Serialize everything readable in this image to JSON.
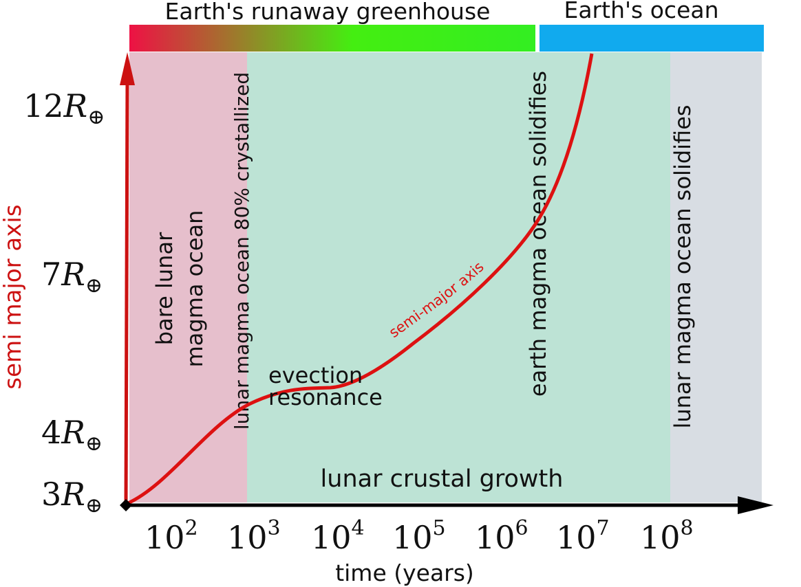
{
  "top_bar": {
    "greenhouse_label": "Earth's runaway greenhouse",
    "ocean_label": "Earth's ocean",
    "colors": {
      "greenhouse_start": "#ee1144",
      "greenhouse_mid": "#33ee22",
      "ocean": "#11aaee"
    }
  },
  "regions": {
    "bare_label_line1": "bare lunar",
    "bare_label_line2": "magma ocean",
    "crystallized_label": "lunar magma ocean 80% crystallized",
    "earth_solidifies_label": "earth magma ocean solidifies",
    "lunar_solidifies_label": "lunar magma ocean solidifies",
    "crustal_growth_label": "lunar crustal growth",
    "colors": {
      "bare": "#e6bfcc",
      "crust": "#bde3d5",
      "solid": "#d8dde3"
    }
  },
  "annotations": {
    "evection_line1": "evection",
    "evection_line2": "resonance",
    "curve_label": "semi-major axis"
  },
  "axes": {
    "y_title": "semi major axis",
    "x_title": "time (years)",
    "y_axis_color": "#cc1111",
    "x_axis_color": "#000000",
    "x_ticks": [
      {
        "base": "10",
        "exp": "2"
      },
      {
        "base": "10",
        "exp": "3"
      },
      {
        "base": "10",
        "exp": "4"
      },
      {
        "base": "10",
        "exp": "5"
      },
      {
        "base": "10",
        "exp": "6"
      },
      {
        "base": "10",
        "exp": "7"
      },
      {
        "base": "10",
        "exp": "8"
      }
    ],
    "y_ticks": [
      {
        "coef": "3",
        "symbol": "R",
        "sub": "⊕"
      },
      {
        "coef": "4",
        "symbol": "R",
        "sub": "⊕"
      },
      {
        "coef": "7",
        "symbol": "R",
        "sub": "⊕"
      },
      {
        "coef": "12",
        "symbol": "R",
        "sub": "⊕"
      }
    ]
  },
  "curve": {
    "color": "#dd1111"
  }
}
